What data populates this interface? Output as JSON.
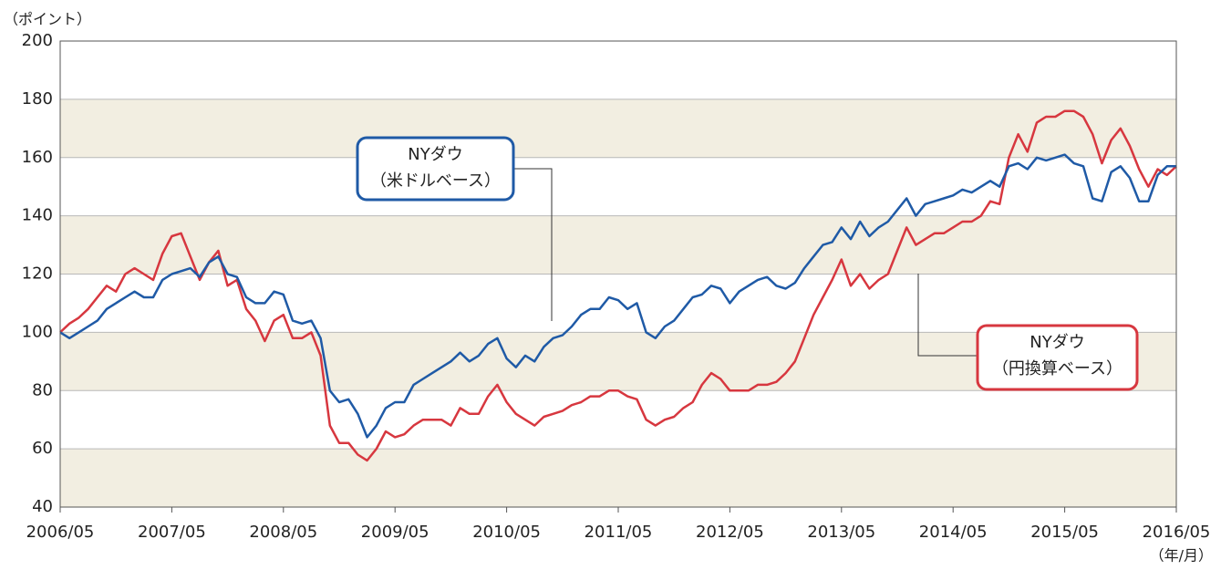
{
  "chart_data": {
    "type": "line",
    "y_label": "（ポイント）",
    "x_unit": "（年/月）",
    "x": [
      "2006/05",
      "2006/06",
      "2006/07",
      "2006/08",
      "2006/09",
      "2006/10",
      "2006/11",
      "2006/12",
      "2007/01",
      "2007/02",
      "2007/03",
      "2007/04",
      "2007/05",
      "2007/06",
      "2007/07",
      "2007/08",
      "2007/09",
      "2007/10",
      "2007/11",
      "2007/12",
      "2008/01",
      "2008/02",
      "2008/03",
      "2008/04",
      "2008/05",
      "2008/06",
      "2008/07",
      "2008/08",
      "2008/09",
      "2008/10",
      "2008/11",
      "2008/12",
      "2009/01",
      "2009/02",
      "2009/03",
      "2009/04",
      "2009/05",
      "2009/06",
      "2009/07",
      "2009/08",
      "2009/09",
      "2009/10",
      "2009/11",
      "2009/12",
      "2010/01",
      "2010/02",
      "2010/03",
      "2010/04",
      "2010/05",
      "2010/06",
      "2010/07",
      "2010/08",
      "2010/09",
      "2010/10",
      "2010/11",
      "2010/12",
      "2011/01",
      "2011/02",
      "2011/03",
      "2011/04",
      "2011/05",
      "2011/06",
      "2011/07",
      "2011/08",
      "2011/09",
      "2011/10",
      "2011/11",
      "2011/12",
      "2012/01",
      "2012/02",
      "2012/03",
      "2012/04",
      "2012/05",
      "2012/06",
      "2012/07",
      "2012/08",
      "2012/09",
      "2012/10",
      "2012/11",
      "2012/12",
      "2013/01",
      "2013/02",
      "2013/03",
      "2013/04",
      "2013/05",
      "2013/06",
      "2013/07",
      "2013/08",
      "2013/09",
      "2013/10",
      "2013/11",
      "2013/12",
      "2014/01",
      "2014/02",
      "2014/03",
      "2014/04",
      "2014/05",
      "2014/06",
      "2014/07",
      "2014/08",
      "2014/09",
      "2014/10",
      "2014/11",
      "2014/12",
      "2015/01",
      "2015/02",
      "2015/03",
      "2015/04",
      "2015/05",
      "2015/06",
      "2015/07",
      "2015/08",
      "2015/09",
      "2015/10",
      "2015/11",
      "2015/12",
      "2016/01",
      "2016/02",
      "2016/03",
      "2016/04",
      "2016/05"
    ],
    "series": [
      {
        "color": "#d7373f",
        "values": [
          100,
          103,
          105,
          108,
          112,
          116,
          114,
          120,
          122,
          120,
          118,
          127,
          133,
          134,
          126,
          118,
          124,
          128,
          116,
          118,
          108,
          104,
          97,
          104,
          106,
          98,
          98,
          100,
          92,
          68,
          62,
          62,
          58,
          56,
          60,
          66,
          64,
          65,
          68,
          70,
          70,
          70,
          68,
          74,
          72,
          72,
          78,
          82,
          76,
          72,
          70,
          68,
          71,
          72,
          73,
          75,
          76,
          78,
          78,
          80,
          80,
          78,
          77,
          70,
          68,
          70,
          71,
          74,
          76,
          82,
          86,
          84,
          80,
          80,
          80,
          82,
          82,
          83,
          86,
          90,
          98,
          106,
          112,
          118,
          125,
          116,
          120,
          115,
          118,
          120,
          128,
          136,
          130,
          132,
          134,
          134,
          136,
          138,
          138,
          140,
          145,
          144,
          160,
          168,
          162,
          172,
          174,
          174,
          176,
          176,
          174,
          168,
          158,
          166,
          170,
          164,
          156,
          150,
          156,
          154,
          157
        ]
      },
      {
        "color": "#1f5aa6",
        "values": [
          100,
          98,
          100,
          102,
          104,
          108,
          110,
          112,
          114,
          112,
          112,
          118,
          120,
          121,
          122,
          119,
          124,
          126,
          120,
          119,
          112,
          110,
          110,
          114,
          113,
          104,
          103,
          104,
          98,
          80,
          76,
          77,
          72,
          64,
          68,
          74,
          76,
          76,
          82,
          84,
          86,
          88,
          90,
          93,
          90,
          92,
          96,
          98,
          91,
          88,
          92,
          90,
          95,
          98,
          99,
          102,
          106,
          108,
          108,
          112,
          111,
          108,
          110,
          100,
          98,
          102,
          104,
          108,
          112,
          113,
          116,
          115,
          110,
          114,
          116,
          118,
          119,
          116,
          115,
          117,
          122,
          126,
          130,
          131,
          136,
          132,
          138,
          133,
          136,
          138,
          142,
          146,
          140,
          144,
          145,
          146,
          147,
          149,
          148,
          150,
          152,
          150,
          157,
          158,
          156,
          160,
          159,
          160,
          161,
          158,
          157,
          146,
          145,
          155,
          157,
          153,
          145,
          145,
          154,
          157,
          157
        ]
      }
    ],
    "annotations": [
      {
        "lines": [
          "NYダウ",
          "（米ドルベース）"
        ],
        "color": "#1f5aa6"
      },
      {
        "lines": [
          "NYダウ",
          "（円換算ベース）"
        ],
        "color": "#d7373f"
      }
    ],
    "xlim": [
      "2006/05",
      "2016/05"
    ],
    "xticks": [
      "2006/05",
      "2007/05",
      "2008/05",
      "2009/05",
      "2010/05",
      "2011/05",
      "2012/05",
      "2013/05",
      "2014/05",
      "2015/05",
      "2016/05"
    ],
    "ylim": [
      40,
      200
    ],
    "yticks": [
      40,
      60,
      80,
      100,
      120,
      140,
      160,
      180,
      200
    ],
    "grid": true
  }
}
